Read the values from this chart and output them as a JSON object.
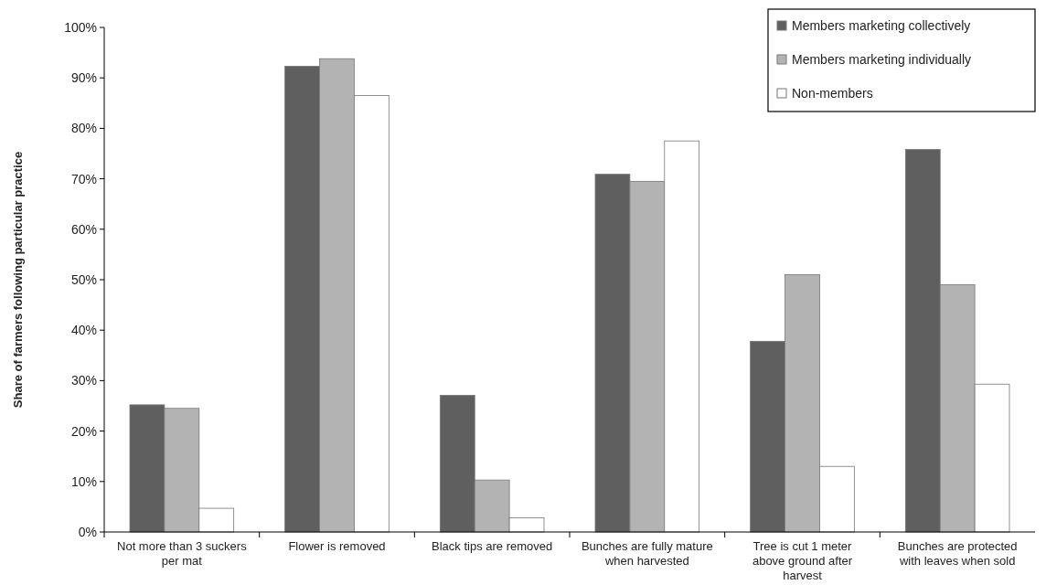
{
  "chart_data": {
    "type": "bar",
    "ylabel": "Share of farmers following particular practice",
    "categories": [
      "Not more than 3 suckers per mat",
      "Flower is removed",
      "Black tips are removed",
      "Bunches are fully mature when harvested",
      "Tree is cut 1 meter above ground after harvest",
      "Bunches are protected with leaves when sold"
    ],
    "series": [
      {
        "name": "Members marketing collectively",
        "color": "#5f5f5f",
        "values": [
          25.2,
          92.3,
          27.1,
          70.9,
          37.8,
          75.8
        ]
      },
      {
        "name": "Members marketing individually",
        "color": "#b3b3b3",
        "values": [
          24.5,
          93.8,
          10.3,
          69.5,
          51.0,
          49.0
        ]
      },
      {
        "name": "Non-members",
        "color": "#ffffff",
        "values": [
          4.7,
          86.5,
          2.8,
          77.5,
          13.0,
          29.3
        ]
      }
    ],
    "ylim": [
      0,
      100
    ],
    "yticks": [
      {
        "value": 0,
        "label": "0%"
      },
      {
        "value": 10,
        "label": "10%"
      },
      {
        "value": 20,
        "label": "20%"
      },
      {
        "value": 30,
        "label": "30%"
      },
      {
        "value": 40,
        "label": "40%"
      },
      {
        "value": 50,
        "label": "50%"
      },
      {
        "value": 60,
        "label": "60%"
      },
      {
        "value": 70,
        "label": "70%"
      },
      {
        "value": 80,
        "label": "80%"
      },
      {
        "value": 90,
        "label": "90%"
      },
      {
        "value": 100,
        "label": "100%"
      }
    ],
    "grid": false,
    "legend": "top right"
  }
}
